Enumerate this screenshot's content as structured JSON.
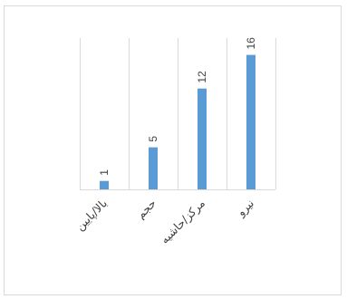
{
  "chart_data": {
    "type": "bar",
    "categories": [
      "بالا/پایین",
      "حجم",
      "مرکز/حاشیه",
      "نیرو"
    ],
    "values": [
      1,
      5,
      12,
      16
    ],
    "title": "",
    "xlabel": "",
    "ylabel": "",
    "ylim": [
      0,
      18
    ],
    "grid": "vertical separators",
    "legend": "none",
    "bar_color": "#5b9bd5",
    "gridline_color": "#d9d9d9",
    "text_color": "#404040",
    "text_orientation": "rotated"
  }
}
